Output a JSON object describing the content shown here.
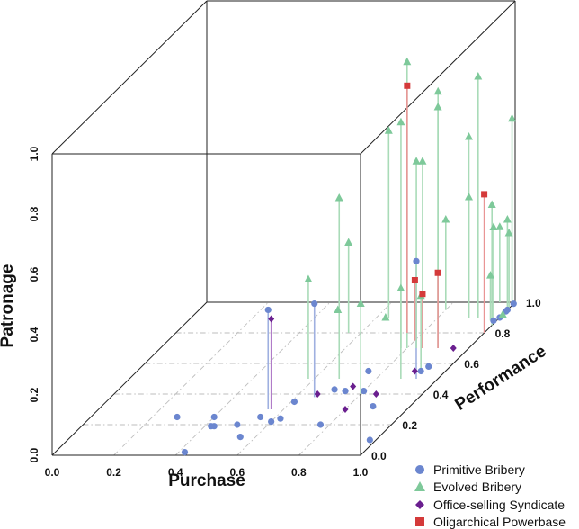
{
  "chart_data": {
    "type": "scatter3d",
    "title": "",
    "xlabel": "Purchase",
    "ylabel": "Performance",
    "zlabel": "Patronage",
    "xlim": [
      0,
      1
    ],
    "ylim": [
      0,
      1
    ],
    "zlim": [
      0,
      1
    ],
    "x_ticks": [
      "0.0",
      "0.2",
      "0.4",
      "0.6",
      "0.8",
      "1.0"
    ],
    "y_ticks": [
      "0.0",
      "0.2",
      "0.4",
      "0.6",
      "0.8",
      "1.0"
    ],
    "z_ticks": [
      "0.0",
      "0.2",
      "0.4",
      "0.6",
      "0.8",
      "1.0"
    ],
    "grid": true,
    "drop_lines": true,
    "legend_position": "bottom-right",
    "series": [
      {
        "name": "Primitive Bribery",
        "marker": "circle",
        "color": "#6b86cf",
        "points": [
          [
            0.28,
            0.25,
            0.0
          ],
          [
            0.42,
            0.02,
            0.0
          ],
          [
            0.55,
            0.25,
            0.0
          ],
          [
            0.4,
            0.25,
            0.0
          ],
          [
            0.42,
            0.19,
            0.0
          ],
          [
            0.43,
            0.19,
            0.0
          ],
          [
            0.55,
            0.12,
            0.0
          ],
          [
            0.5,
            0.2,
            0.0
          ],
          [
            0.6,
            0.22,
            0.0
          ],
          [
            0.62,
            0.24,
            0.0
          ],
          [
            0.77,
            0.2,
            0.0
          ],
          [
            0.88,
            0.32,
            0.0
          ],
          [
            0.98,
            0.1,
            0.0
          ],
          [
            0.55,
            0.3,
            0.33
          ],
          [
            0.61,
            0.35,
            0.0
          ],
          [
            0.66,
            0.38,
            0.31
          ],
          [
            0.7,
            0.43,
            0.0
          ],
          [
            0.74,
            0.42,
            0.0
          ],
          [
            0.8,
            0.42,
            0.0
          ],
          [
            0.75,
            0.55,
            0.0
          ],
          [
            0.93,
            0.58,
            0.0
          ],
          [
            0.93,
            0.5,
            0.39
          ],
          [
            0.92,
            0.55,
            0.0
          ],
          [
            0.99,
            0.88,
            0.0
          ],
          [
            1.0,
            0.95,
            0.0
          ],
          [
            1.0,
            0.9,
            0.0
          ],
          [
            1.0,
            0.99,
            0.0
          ],
          [
            1.0,
            0.94,
            0.0
          ]
        ]
      },
      {
        "name": "Evolved Bribery",
        "marker": "triangle",
        "color": "#7ec99a",
        "points": [
          [
            0.45,
            0.95,
            0.0
          ],
          [
            0.56,
            0.8,
            0.3
          ],
          [
            0.58,
            0.5,
            0.33
          ],
          [
            0.63,
            0.9,
            0.0
          ],
          [
            0.64,
            0.9,
            0.62
          ],
          [
            0.68,
            0.5,
            0.6
          ],
          [
            0.8,
            0.9,
            0.75
          ],
          [
            0.78,
            0.7,
            0.75
          ],
          [
            0.8,
            0.7,
            0.95
          ],
          [
            0.83,
            0.7,
            0.62
          ],
          [
            0.85,
            0.7,
            0.62
          ],
          [
            0.8,
            0.4,
            0.3
          ],
          [
            0.9,
            0.7,
            0.8
          ],
          [
            0.92,
            0.55,
            0.25
          ],
          [
            0.88,
            0.5,
            0.3
          ],
          [
            0.9,
            0.9,
            0.6
          ],
          [
            0.93,
            0.9,
            0.8
          ],
          [
            0.9,
            0.9,
            0.4
          ],
          [
            0.8,
            0.95,
            0.3
          ],
          [
            0.95,
            1.0,
            0.25
          ],
          [
            1.0,
            0.85,
            0.4
          ],
          [
            0.98,
            0.9,
            0.3
          ],
          [
            0.98,
            0.88,
            0.15
          ],
          [
            1.0,
            0.96,
            0.25
          ],
          [
            1.0,
            0.92,
            0.0
          ],
          [
            1.0,
            0.95,
            0.3
          ],
          [
            1.0,
            0.98,
            0.62
          ]
        ]
      },
      {
        "name": "Office-selling Syndicate",
        "marker": "diamond",
        "color": "#6a1f8f",
        "points": [
          [
            0.56,
            0.3,
            0.3
          ],
          [
            0.66,
            0.4,
            0.0
          ],
          [
            0.75,
            0.45,
            0.0
          ],
          [
            0.8,
            0.3,
            0.0
          ],
          [
            0.85,
            0.4,
            0.0
          ],
          [
            0.9,
            0.55,
            0.0
          ],
          [
            0.95,
            0.7,
            0.0
          ]
        ]
      },
      {
        "name": "Oligarchical Powerbase",
        "marker": "square",
        "color": "#d43a3a",
        "points": [
          [
            0.75,
            0.8,
            0.82
          ],
          [
            0.8,
            0.75,
            0.2
          ],
          [
            0.85,
            0.7,
            0.18
          ],
          [
            0.9,
            0.7,
            0.25
          ],
          [
            1.0,
            0.8,
            0.46
          ]
        ]
      }
    ]
  }
}
